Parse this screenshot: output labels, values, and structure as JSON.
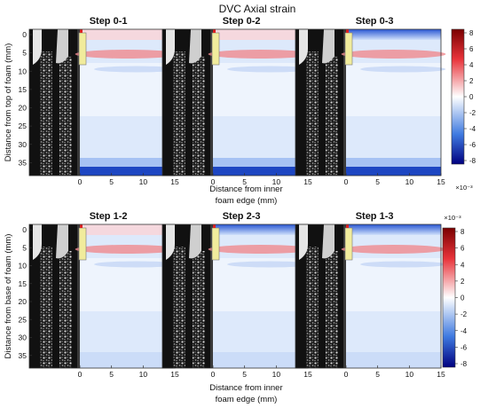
{
  "figure": {
    "title": "DVC Axial strain",
    "colors": {
      "positive_max": "#8b0000",
      "negative_max": "#00008b",
      "zero": "#ffffff",
      "ct_dark": "#111111",
      "ct_mid": "#3a3a3a",
      "insert_fill": "#f1ec9c"
    }
  },
  "rows": [
    {
      "ylabel": "Distance from top of foam (mm)",
      "yticks": [
        "0",
        "5",
        "10",
        "15",
        "20",
        "25",
        "30",
        "35"
      ],
      "xlabel_line1": "Distance from inner",
      "xlabel_line2": "foam edge (mm)",
      "colorbar": {
        "ticks": [
          "8",
          "6",
          "4",
          "2",
          "0",
          "-2",
          "-4",
          "-6",
          "-8"
        ],
        "exponent": "×10⁻³"
      },
      "panels": [
        {
          "title": "Step 0-1",
          "xticks": [
            "0",
            "5",
            "10",
            "15"
          ]
        },
        {
          "title": "Step 0-2",
          "xticks": [
            "0",
            "5",
            "10",
            "15"
          ]
        },
        {
          "title": "Step 0-3",
          "xticks": [
            "0",
            "5",
            "10",
            "15"
          ]
        }
      ]
    },
    {
      "ylabel": "Distance from base of foam (mm)",
      "yticks": [
        "0",
        "5",
        "10",
        "15",
        "20",
        "25",
        "30",
        "35"
      ],
      "xlabel_line1": "Distance from inner",
      "xlabel_line2": "foam edge (mm)",
      "colorbar": {
        "ticks": [
          "8",
          "6",
          "4",
          "2",
          "0",
          "-2",
          "-4",
          "-6",
          "-8"
        ],
        "exponent": "×10⁻³"
      },
      "panels": [
        {
          "title": "Step 1-2",
          "xticks": [
            "0",
            "5",
            "10",
            "15"
          ]
        },
        {
          "title": "Step 2-3",
          "xticks": [
            "0",
            "5",
            "10",
            "15"
          ]
        },
        {
          "title": "Step 1-3",
          "xticks": [
            "0",
            "5",
            "10",
            "15"
          ]
        }
      ]
    }
  ]
}
